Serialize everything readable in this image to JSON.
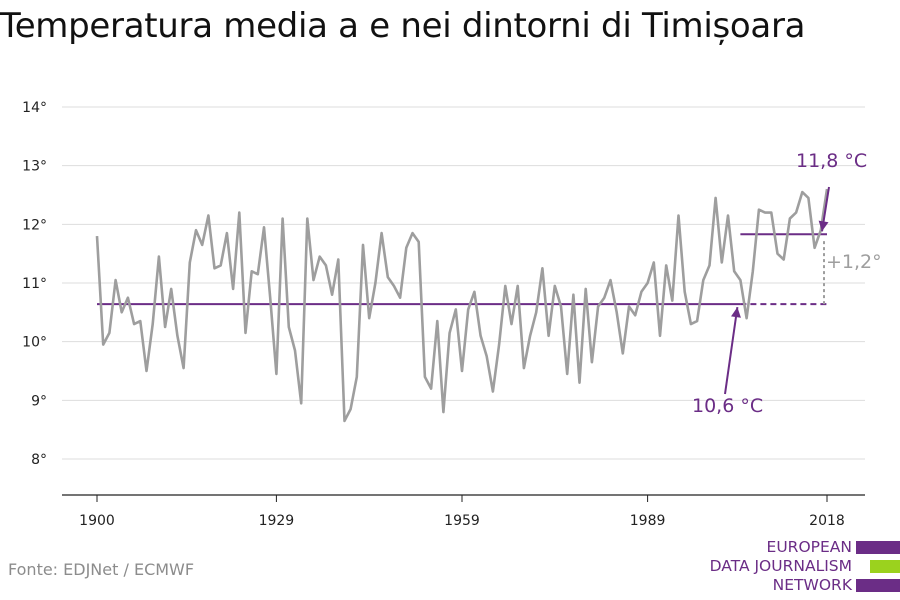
{
  "chart_data": {
    "type": "line",
    "title": "Temperatura media a e nei dintorni di Timișoara",
    "xlabel": "",
    "ylabel": "",
    "xlim": [
      1900,
      2018
    ],
    "ylim": [
      8,
      14
    ],
    "x_ticks": [
      "1900",
      "1929",
      "1959",
      "1989",
      "2018"
    ],
    "y_ticks": [
      "8°",
      "9°",
      "10°",
      "11°",
      "12°",
      "13°",
      "14°"
    ],
    "grid": true,
    "series": [
      {
        "name": "",
        "color": "#9e9e9e",
        "x": [
          1900,
          1901,
          1902,
          1903,
          1904,
          1905,
          1906,
          1907,
          1908,
          1909,
          1910,
          1911,
          1912,
          1913,
          1914,
          1915,
          1916,
          1917,
          1918,
          1919,
          1920,
          1921,
          1922,
          1923,
          1924,
          1925,
          1926,
          1927,
          1928,
          1929,
          1930,
          1931,
          1932,
          1933,
          1934,
          1935,
          1936,
          1937,
          1938,
          1939,
          1940,
          1941,
          1942,
          1943,
          1944,
          1945,
          1946,
          1947,
          1948,
          1949,
          1950,
          1951,
          1952,
          1953,
          1954,
          1955,
          1956,
          1957,
          1958,
          1959,
          1960,
          1961,
          1962,
          1963,
          1964,
          1965,
          1966,
          1967,
          1968,
          1969,
          1970,
          1971,
          1972,
          1973,
          1974,
          1975,
          1976,
          1977,
          1978,
          1979,
          1980,
          1981,
          1982,
          1983,
          1984,
          1985,
          1986,
          1987,
          1988,
          1989,
          1990,
          1991,
          1992,
          1993,
          1994,
          1995,
          1996,
          1997,
          1998,
          1999,
          2000,
          2001,
          2002,
          2003,
          2004,
          2005,
          2006,
          2007,
          2008,
          2009,
          2010,
          2011,
          2012,
          2013,
          2014,
          2015,
          2016,
          2017,
          2018
        ],
        "values": [
          11.8,
          9.95,
          10.15,
          11.05,
          10.5,
          10.75,
          10.3,
          10.35,
          9.5,
          10.3,
          11.45,
          10.25,
          10.9,
          10.1,
          9.55,
          11.35,
          11.9,
          11.65,
          12.15,
          11.25,
          11.3,
          11.85,
          10.9,
          12.2,
          10.15,
          11.2,
          11.15,
          11.95,
          10.75,
          9.45,
          12.1,
          10.25,
          9.85,
          8.95,
          12.1,
          11.05,
          11.45,
          11.3,
          10.8,
          11.4,
          8.65,
          8.85,
          9.4,
          11.65,
          10.4,
          11.0,
          11.85,
          11.1,
          10.95,
          10.75,
          11.6,
          11.85,
          11.7,
          9.4,
          9.2,
          10.35,
          8.8,
          10.15,
          10.55,
          9.5,
          10.55,
          10.85,
          10.1,
          9.75,
          9.15,
          9.95,
          10.95,
          10.3,
          10.95,
          9.55,
          10.1,
          10.5,
          11.25,
          10.1,
          10.95,
          10.6,
          9.45,
          10.8,
          9.3,
          10.9,
          9.65,
          10.6,
          10.75,
          11.05,
          10.5,
          9.8,
          10.6,
          10.45,
          10.85,
          11.0,
          11.35,
          10.1,
          11.3,
          10.7,
          12.15,
          10.85,
          10.3,
          10.35,
          11.05,
          11.3,
          12.45,
          11.35,
          12.15,
          11.2,
          11.05,
          10.4,
          11.2,
          12.25,
          12.2,
          12.2,
          11.5,
          11.4,
          12.1,
          12.2,
          12.55,
          12.45,
          11.6,
          11.9,
          12.6
        ]
      }
    ],
    "reference_lines": [
      {
        "label": "10,6 °C",
        "value": 10.64,
        "x_start": 1900,
        "x_end": 2004,
        "color": "#6b2d86"
      },
      {
        "label": "11,8 °C",
        "value": 11.83,
        "x_start": 2004,
        "x_end": 2018,
        "color": "#6b2d86"
      }
    ],
    "difference_label": "+1,2°"
  },
  "source": "Fonte: EDJNet / ECMWF",
  "logo": {
    "lines": [
      "EUROPEAN",
      "DATA JOURNALISM",
      "NETWORK"
    ],
    "colors": [
      "#6b2d86",
      "#9bd21e",
      "#6b2d86"
    ]
  }
}
